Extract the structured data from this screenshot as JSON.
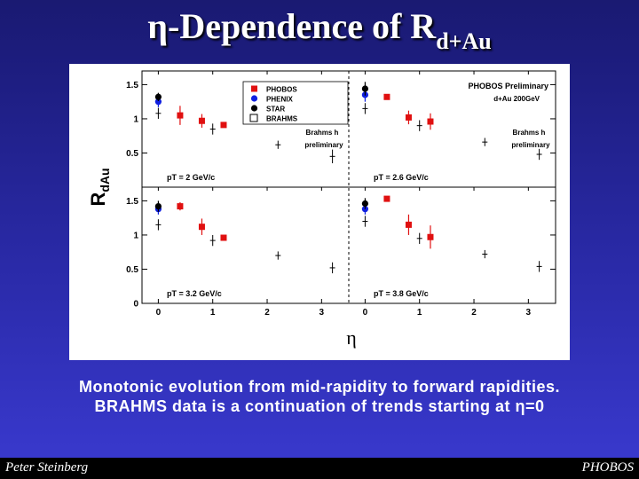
{
  "slide": {
    "title_main": "η-Dependence of R",
    "title_sub": "d+Au",
    "caption_line1": "Monotonic evolution from mid-rapidity to forward rapidities.",
    "caption_line2": "BRAHMS data is a continuation of trends starting at η=0",
    "footer_left": "Peter Steinberg",
    "footer_right": "PHOBOS"
  },
  "chart_data": {
    "type": "scatter",
    "ylabel": "R",
    "ylabel_sub": "dAu",
    "xlabel": "η",
    "x_ticks": [
      "0",
      "1",
      "2",
      "3"
    ],
    "xlim": [
      -0.3,
      3.5
    ],
    "y_ticks_top": [
      "0.5",
      "1",
      "1.5"
    ],
    "y_ticks_bottom": [
      "0",
      "0.5",
      "1",
      "1.5"
    ],
    "ylim": [
      0,
      1.7
    ],
    "colors": {
      "PHOBOS": "#e01010",
      "PHENIX": "#1020e0",
      "STAR": "#000000",
      "BRAHMS": "#000000"
    },
    "legend": [
      "PHOBOS",
      "PHENIX",
      "STAR",
      "BRAHMS"
    ],
    "header_text": "PHOBOS Preliminary",
    "header_sub": "d+Au 200GeV",
    "brahms_note_line1": "Brahms h",
    "brahms_note_line2": "preliminary",
    "panels": [
      {
        "label": "pT = 2 GeV/c",
        "series": [
          {
            "name": "PHOBOS",
            "points": [
              [
                0.4,
                1.05,
                0.14
              ],
              [
                0.8,
                0.97,
                0.1
              ],
              [
                1.2,
                0.91,
                0.04
              ]
            ]
          },
          {
            "name": "PHENIX",
            "points": [
              [
                0.0,
                1.25,
                0.08
              ]
            ]
          },
          {
            "name": "STAR",
            "points": [
              [
                0.0,
                1.32,
                0.06
              ]
            ]
          },
          {
            "name": "BRAHMS",
            "points": [
              [
                0.0,
                1.08,
                0.08
              ],
              [
                1.0,
                0.85,
                0.08
              ],
              [
                2.2,
                0.62,
                0.06
              ],
              [
                3.2,
                0.45,
                0.1
              ]
            ]
          }
        ]
      },
      {
        "label": "pT = 2.6 GeV/c",
        "series": [
          {
            "name": "PHOBOS",
            "points": [
              [
                0.4,
                1.32,
                0.03
              ],
              [
                0.8,
                1.02,
                0.1
              ],
              [
                1.2,
                0.96,
                0.12
              ]
            ]
          },
          {
            "name": "PHENIX",
            "points": [
              [
                0.0,
                1.35,
                0.1
              ]
            ]
          },
          {
            "name": "STAR",
            "points": [
              [
                0.0,
                1.44,
                0.1
              ]
            ]
          },
          {
            "name": "BRAHMS",
            "points": [
              [
                0.0,
                1.15,
                0.08
              ],
              [
                1.0,
                0.9,
                0.08
              ],
              [
                2.2,
                0.66,
                0.06
              ],
              [
                3.2,
                0.48,
                0.08
              ]
            ]
          }
        ]
      },
      {
        "label": "pT = 3.2 GeV/c",
        "series": [
          {
            "name": "PHOBOS",
            "points": [
              [
                0.4,
                1.42,
                0.06
              ],
              [
                0.8,
                1.12,
                0.12
              ],
              [
                1.2,
                0.96,
                0.03
              ]
            ]
          },
          {
            "name": "PHENIX",
            "points": [
              [
                0.0,
                1.38,
                0.08
              ]
            ]
          },
          {
            "name": "STAR",
            "points": [
              [
                0.0,
                1.42,
                0.08
              ]
            ]
          },
          {
            "name": "BRAHMS",
            "points": [
              [
                0.0,
                1.15,
                0.08
              ],
              [
                1.0,
                0.92,
                0.08
              ],
              [
                2.2,
                0.7,
                0.06
              ],
              [
                3.2,
                0.52,
                0.08
              ]
            ]
          }
        ]
      },
      {
        "label": "pT = 3.8 GeV/c",
        "series": [
          {
            "name": "PHOBOS",
            "points": [
              [
                0.4,
                1.53,
                0.03
              ],
              [
                0.8,
                1.15,
                0.15
              ],
              [
                1.2,
                0.97,
                0.17
              ]
            ]
          },
          {
            "name": "PHENIX",
            "points": [
              [
                0.0,
                1.38,
                0.08
              ]
            ]
          },
          {
            "name": "STAR",
            "points": [
              [
                0.0,
                1.46,
                0.08
              ]
            ]
          },
          {
            "name": "BRAHMS",
            "points": [
              [
                0.0,
                1.2,
                0.08
              ],
              [
                1.0,
                0.95,
                0.08
              ],
              [
                2.2,
                0.72,
                0.06
              ],
              [
                3.2,
                0.54,
                0.08
              ]
            ]
          }
        ]
      }
    ]
  }
}
